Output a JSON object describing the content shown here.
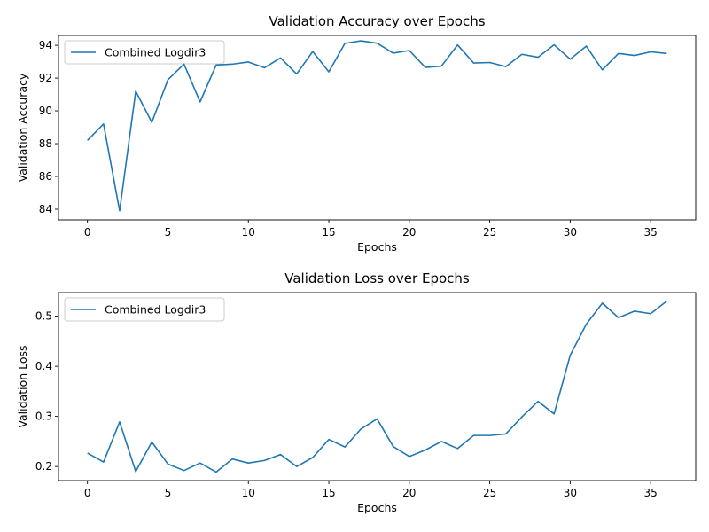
{
  "chart_data": [
    {
      "type": "line",
      "title": "Validation Accuracy over Epochs",
      "xlabel": "Epochs",
      "ylabel": "Validation Accuracy",
      "xlim": [
        -1.8,
        37.8
      ],
      "ylim": [
        83.35,
        94.6
      ],
      "xticks": [
        0,
        5,
        10,
        15,
        20,
        25,
        30,
        35
      ],
      "yticks": [
        84,
        86,
        88,
        90,
        92,
        94
      ],
      "legend_position": "upper-left",
      "grid": false,
      "series": [
        {
          "name": "Combined Logdir3",
          "color": "#1f77b4",
          "x": [
            0,
            1,
            2,
            3,
            4,
            5,
            6,
            7,
            8,
            9,
            10,
            11,
            12,
            13,
            14,
            15,
            16,
            17,
            18,
            19,
            20,
            21,
            22,
            23,
            24,
            25,
            26,
            27,
            28,
            29,
            30,
            31,
            32,
            33,
            34,
            35,
            36
          ],
          "y": [
            88.2,
            89.2,
            83.9,
            91.2,
            89.3,
            91.9,
            92.85,
            90.55,
            92.8,
            92.85,
            92.98,
            92.63,
            93.23,
            92.25,
            93.62,
            92.38,
            94.12,
            94.27,
            94.13,
            93.52,
            93.68,
            92.65,
            92.73,
            94.02,
            92.92,
            92.95,
            92.7,
            93.45,
            93.27,
            94.03,
            93.15,
            93.95,
            92.5,
            93.5,
            93.38,
            93.6,
            93.5
          ]
        }
      ]
    },
    {
      "type": "line",
      "title": "Validation Loss over Epochs",
      "xlabel": "Epochs",
      "ylabel": "Validation Loss",
      "xlim": [
        -1.8,
        37.8
      ],
      "ylim": [
        0.172,
        0.547
      ],
      "xticks": [
        0,
        5,
        10,
        15,
        20,
        25,
        30,
        35
      ],
      "yticks": [
        0.2,
        0.3,
        0.4,
        0.5
      ],
      "legend_position": "upper-left",
      "grid": false,
      "series": [
        {
          "name": "Combined Logdir3",
          "color": "#1f77b4",
          "x": [
            0,
            1,
            2,
            3,
            4,
            5,
            6,
            7,
            8,
            9,
            10,
            11,
            12,
            13,
            14,
            15,
            16,
            17,
            18,
            19,
            20,
            21,
            22,
            23,
            24,
            25,
            26,
            27,
            28,
            29,
            30,
            31,
            32,
            33,
            34,
            35,
            36
          ],
          "y": [
            0.227,
            0.209,
            0.289,
            0.19,
            0.249,
            0.205,
            0.192,
            0.207,
            0.189,
            0.215,
            0.207,
            0.212,
            0.224,
            0.2,
            0.218,
            0.254,
            0.239,
            0.275,
            0.295,
            0.24,
            0.22,
            0.233,
            0.25,
            0.236,
            0.262,
            0.262,
            0.265,
            0.299,
            0.33,
            0.305,
            0.422,
            0.484,
            0.526,
            0.497,
            0.51,
            0.505,
            0.53
          ]
        }
      ]
    }
  ]
}
